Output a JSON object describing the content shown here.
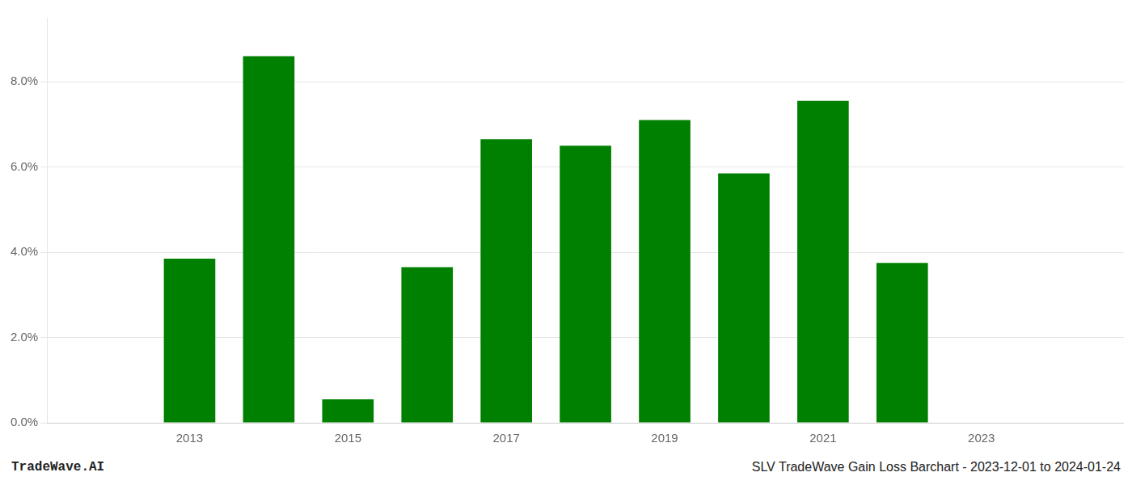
{
  "chart_data": {
    "type": "bar",
    "x": [
      2013,
      2014,
      2015,
      2016,
      2017,
      2018,
      2019,
      2020,
      2021,
      2022
    ],
    "values": [
      0.0385,
      0.086,
      0.0055,
      0.0365,
      0.0665,
      0.065,
      0.071,
      0.0585,
      0.0755,
      0.0375
    ],
    "color": "#008000",
    "xlim": [
      2011.2,
      2024.8
    ],
    "xticks": [
      2013,
      2015,
      2017,
      2019,
      2021,
      2023
    ],
    "ylim": [
      0,
      0.095
    ],
    "yticks": [
      {
        "value": 0.0,
        "label": "0.0%"
      },
      {
        "value": 0.02,
        "label": "2.0%"
      },
      {
        "value": 0.04,
        "label": "4.0%"
      },
      {
        "value": 0.06,
        "label": "6.0%"
      },
      {
        "value": 0.08,
        "label": "8.0%"
      }
    ],
    "grid": true,
    "annotations": [
      "TradeWave.AI",
      "SLV TradeWave Gain Loss Barchart - 2023-12-01 to 2024-01-24"
    ]
  }
}
